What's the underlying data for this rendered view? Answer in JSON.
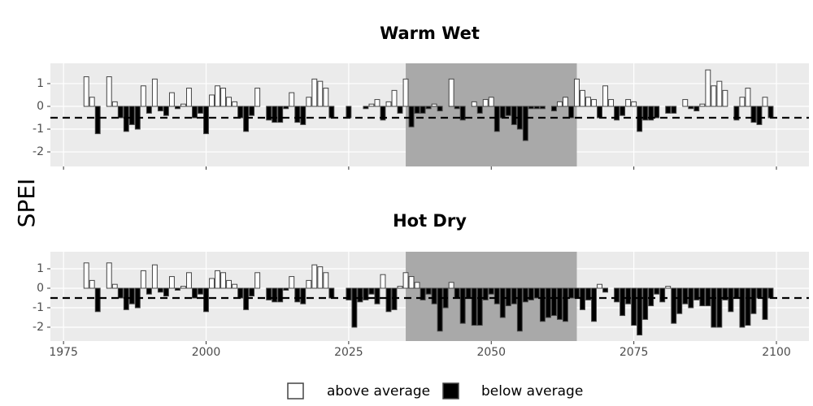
{
  "y_label": "SPEI",
  "threshold": -0.5,
  "highlight": [
    2035,
    2065
  ],
  "legend": {
    "labels": [
      "above average",
      "below average"
    ],
    "colors": [
      "#ffffff",
      "#000000"
    ]
  },
  "chart_data": [
    {
      "type": "bar",
      "title": "Warm Wet",
      "x": [
        1979,
        1980,
        1981,
        1982,
        1983,
        1984,
        1985,
        1986,
        1987,
        1988,
        1989,
        1990,
        1991,
        1992,
        1993,
        1994,
        1995,
        1996,
        1997,
        1998,
        1999,
        2000,
        2001,
        2002,
        2003,
        2004,
        2005,
        2006,
        2007,
        2008,
        2009,
        2010,
        2011,
        2012,
        2013,
        2014,
        2015,
        2016,
        2017,
        2018,
        2019,
        2020,
        2021,
        2022,
        2023,
        2024,
        2025,
        2026,
        2027,
        2028,
        2029,
        2030,
        2031,
        2032,
        2033,
        2034,
        2035,
        2036,
        2037,
        2038,
        2039,
        2040,
        2041,
        2042,
        2043,
        2044,
        2045,
        2046,
        2047,
        2048,
        2049,
        2050,
        2051,
        2052,
        2053,
        2054,
        2055,
        2056,
        2057,
        2058,
        2059,
        2060,
        2061,
        2062,
        2063,
        2064,
        2065,
        2066,
        2067,
        2068,
        2069,
        2070,
        2071,
        2072,
        2073,
        2074,
        2075,
        2076,
        2077,
        2078,
        2079,
        2080,
        2081,
        2082,
        2083,
        2084,
        2085,
        2086,
        2087,
        2088,
        2089,
        2090,
        2091,
        2092,
        2093,
        2094,
        2095,
        2096,
        2097,
        2098,
        2099
      ],
      "values": [
        1.3,
        0.4,
        -1.2,
        0,
        1.3,
        0.2,
        -0.5,
        -1.1,
        -0.8,
        -1.0,
        0.9,
        -0.3,
        1.2,
        -0.2,
        -0.4,
        0.6,
        -0.1,
        0.1,
        0.8,
        -0.5,
        -0.3,
        -1.2,
        0.5,
        0.9,
        0.8,
        0.4,
        0.2,
        -0.5,
        -1.1,
        -0.4,
        0.8,
        0,
        -0.6,
        -0.7,
        -0.7,
        -0.1,
        0.6,
        -0.7,
        -0.8,
        0.4,
        1.2,
        1.1,
        0.8,
        -0.5,
        null,
        null,
        -0.5,
        0,
        0,
        -0.1,
        0.1,
        0.3,
        -0.6,
        0.2,
        0.7,
        -0.3,
        1.2,
        -0.9,
        -0.3,
        -0.3,
        -0.1,
        0.1,
        -0.2,
        0,
        1.2,
        -0.1,
        -0.6,
        0,
        0.2,
        -0.3,
        0.3,
        0.4,
        -1.1,
        -0.5,
        -0.4,
        -0.8,
        -1.0,
        -1.5,
        -0.1,
        -0.1,
        -0.1,
        0,
        -0.2,
        0.2,
        0.4,
        -0.5,
        1.2,
        0.7,
        0.4,
        0.3,
        -0.5,
        0.9,
        0.3,
        -0.6,
        -0.4,
        0.3,
        0.2,
        -1.1,
        -0.6,
        -0.6,
        -0.5,
        0,
        -0.3,
        -0.3,
        0,
        0.3,
        -0.1,
        -0.2,
        0.1,
        1.6,
        0.9,
        1.1,
        0.7,
        0,
        -0.6,
        0.4,
        0.8,
        -0.7,
        -0.8,
        0.4,
        -0.5
      ],
      "xlim": [
        1972.7,
        2105.7
      ],
      "xticks": [
        1975,
        2000,
        2025,
        2050,
        2075,
        2100
      ],
      "ylim": [
        -2.64,
        1.89
      ],
      "yticks": [
        1,
        0,
        -1,
        -2
      ],
      "grid": true
    },
    {
      "type": "bar",
      "title": "Hot Dry",
      "x": [
        1979,
        1980,
        1981,
        1982,
        1983,
        1984,
        1985,
        1986,
        1987,
        1988,
        1989,
        1990,
        1991,
        1992,
        1993,
        1994,
        1995,
        1996,
        1997,
        1998,
        1999,
        2000,
        2001,
        2002,
        2003,
        2004,
        2005,
        2006,
        2007,
        2008,
        2009,
        2010,
        2011,
        2012,
        2013,
        2014,
        2015,
        2016,
        2017,
        2018,
        2019,
        2020,
        2021,
        2022,
        2023,
        2024,
        2025,
        2026,
        2027,
        2028,
        2029,
        2030,
        2031,
        2032,
        2033,
        2034,
        2035,
        2036,
        2037,
        2038,
        2039,
        2040,
        2041,
        2042,
        2043,
        2044,
        2045,
        2046,
        2047,
        2048,
        2049,
        2050,
        2051,
        2052,
        2053,
        2054,
        2055,
        2056,
        2057,
        2058,
        2059,
        2060,
        2061,
        2062,
        2063,
        2064,
        2065,
        2066,
        2067,
        2068,
        2069,
        2070,
        2071,
        2072,
        2073,
        2074,
        2075,
        2076,
        2077,
        2078,
        2079,
        2080,
        2081,
        2082,
        2083,
        2084,
        2085,
        2086,
        2087,
        2088,
        2089,
        2090,
        2091,
        2092,
        2093,
        2094,
        2095,
        2096,
        2097,
        2098,
        2099
      ],
      "values": [
        1.3,
        0.4,
        -1.2,
        0,
        1.3,
        0.2,
        -0.5,
        -1.1,
        -0.8,
        -1.0,
        0.9,
        -0.3,
        1.2,
        -0.2,
        -0.4,
        0.6,
        -0.1,
        0.1,
        0.8,
        -0.5,
        -0.3,
        -1.2,
        0.5,
        0.9,
        0.8,
        0.4,
        0.2,
        -0.5,
        -1.1,
        -0.4,
        0.8,
        0,
        -0.6,
        -0.7,
        -0.7,
        -0.1,
        0.6,
        -0.7,
        -0.8,
        0.4,
        1.2,
        1.1,
        0.8,
        -0.5,
        null,
        null,
        -0.6,
        -2.0,
        -0.7,
        -0.6,
        -0.3,
        -0.8,
        0.7,
        -1.2,
        -1.1,
        0.1,
        0.8,
        0.6,
        0.3,
        -0.6,
        -0.3,
        -0.8,
        -2.2,
        -1.0,
        0.3,
        -0.5,
        -1.8,
        -0.5,
        -1.9,
        -1.9,
        -0.6,
        -0.3,
        -0.8,
        -1.5,
        -0.9,
        -0.8,
        -2.2,
        -0.7,
        -0.6,
        -0.5,
        -1.7,
        -1.5,
        -1.4,
        -1.6,
        -1.7,
        -0.5,
        -0.5,
        -1.1,
        -0.6,
        -1.7,
        0.2,
        -0.2,
        0,
        -0.7,
        -1.4,
        -0.8,
        -1.9,
        -2.4,
        -1.6,
        -0.9,
        -0.3,
        -0.7,
        0.1,
        -1.8,
        -1.3,
        -0.8,
        -1.0,
        -0.6,
        -0.9,
        -0.9,
        -2.0,
        -2.0,
        -0.6,
        -1.2,
        -0.5,
        -2.0,
        -1.9,
        -1.3,
        -0.5,
        -1.6,
        -0.5
      ],
      "xlim": [
        1972.7,
        2105.7
      ],
      "xticks": [
        1975,
        2000,
        2025,
        2050,
        2075,
        2100
      ],
      "ylim": [
        -2.71,
        1.875
      ],
      "yticks": [
        1,
        0,
        -1,
        -2
      ],
      "grid": true
    }
  ]
}
